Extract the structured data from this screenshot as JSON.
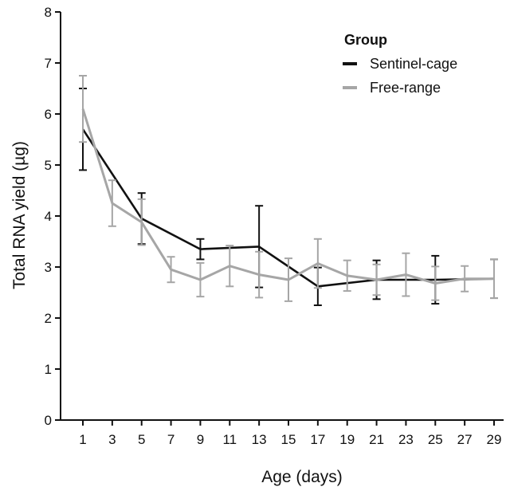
{
  "chart_data": {
    "type": "line",
    "xlabel": "Age (days)",
    "ylabel": "Total RNA yield (µg)",
    "x": [
      1,
      3,
      5,
      7,
      9,
      11,
      13,
      15,
      17,
      19,
      21,
      23,
      25,
      27,
      29
    ],
    "x_tick_labels": [
      "1",
      "3",
      "5",
      "7",
      "9",
      "11",
      "13",
      "15",
      "17",
      "19",
      "21",
      "23",
      "25",
      "27",
      "29"
    ],
    "y_tick_labels": [
      "0",
      "1",
      "2",
      "3",
      "4",
      "5",
      "6",
      "7",
      "8"
    ],
    "ylim": [
      0,
      8
    ],
    "grid": false,
    "legend": {
      "title": "Group",
      "position": "top-right"
    },
    "series": [
      {
        "name": "Sentinel-cage",
        "color": "#111111",
        "x": [
          1,
          5,
          9,
          13,
          17,
          21,
          25,
          29
        ],
        "values": [
          5.7,
          3.95,
          3.35,
          3.4,
          2.62,
          2.75,
          2.75,
          2.77
        ],
        "error": [
          0.8,
          0.5,
          0.2,
          0.8,
          0.37,
          0.38,
          0.47,
          0.38
        ]
      },
      {
        "name": "Free-range",
        "color": "#a6a6a6",
        "x": [
          1,
          3,
          5,
          7,
          9,
          11,
          13,
          15,
          17,
          19,
          21,
          23,
          25,
          27,
          29
        ],
        "values": [
          6.1,
          4.25,
          3.88,
          2.95,
          2.75,
          3.02,
          2.85,
          2.75,
          3.07,
          2.83,
          2.75,
          2.85,
          2.68,
          2.77,
          2.77
        ],
        "error": [
          0.65,
          0.45,
          0.45,
          0.25,
          0.33,
          0.4,
          0.45,
          0.42,
          0.48,
          0.3,
          0.3,
          0.42,
          0.33,
          0.25,
          0.38
        ]
      }
    ]
  }
}
